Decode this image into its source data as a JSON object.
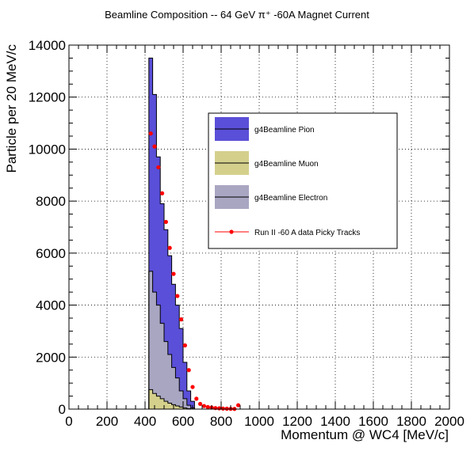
{
  "chart_data": {
    "type": "histogram",
    "title": "Beamline Composition -- 64 GeV π⁺ -60A Magnet Current",
    "xlabel": "Momentum @ WC4 [MeV/c]",
    "ylabel": "Particle per 20 MeV/c",
    "xlim": [
      0,
      2000
    ],
    "ylim": [
      0,
      14000
    ],
    "x_ticks": [
      0,
      200,
      400,
      600,
      800,
      1000,
      1200,
      1400,
      1600,
      1800,
      2000
    ],
    "y_ticks": [
      0,
      2000,
      4000,
      6000,
      8000,
      10000,
      12000,
      14000
    ],
    "grid": true,
    "legend_position": "upper-right",
    "bin_width": 20,
    "bin_edges": [
      420,
      440,
      460,
      480,
      500,
      520,
      540,
      560,
      580,
      600,
      620,
      640,
      660
    ],
    "series": [
      {
        "name": "g4Beamline Pion",
        "kind": "stacked-fill",
        "color": "#5a4fd8",
        "cumulative_values": [
          13500,
          12100,
          9700,
          7900,
          6900,
          5900,
          4800,
          4000,
          3100,
          1800,
          700,
          300
        ]
      },
      {
        "name": "g4Beamline Muon",
        "kind": "stacked-fill",
        "color": "#d4d08c",
        "values": [
          750,
          600,
          500,
          400,
          300,
          230,
          170,
          120,
          80,
          40,
          15,
          5
        ]
      },
      {
        "name": "g4Beamline Electron",
        "kind": "stacked-fill",
        "color": "#a9a6c2",
        "cumulative_values": [
          5300,
          4500,
          4000,
          3300,
          2600,
          2100,
          1600,
          1200,
          700,
          400,
          150,
          50
        ]
      },
      {
        "name": "Run II -60 A data Picky Tracks",
        "kind": "points",
        "color": "#ff0000",
        "x": [
          430,
          450,
          470,
          490,
          510,
          530,
          550,
          570,
          590,
          610,
          630,
          650,
          670,
          690,
          710,
          730,
          750,
          770,
          790,
          810,
          830,
          850,
          870,
          890
        ],
        "y": [
          10600,
          10100,
          9300,
          8300,
          7200,
          6200,
          5200,
          4350,
          3450,
          2450,
          1500,
          850,
          400,
          200,
          120,
          80,
          60,
          40,
          30,
          20,
          15,
          10,
          8,
          150
        ]
      }
    ]
  }
}
